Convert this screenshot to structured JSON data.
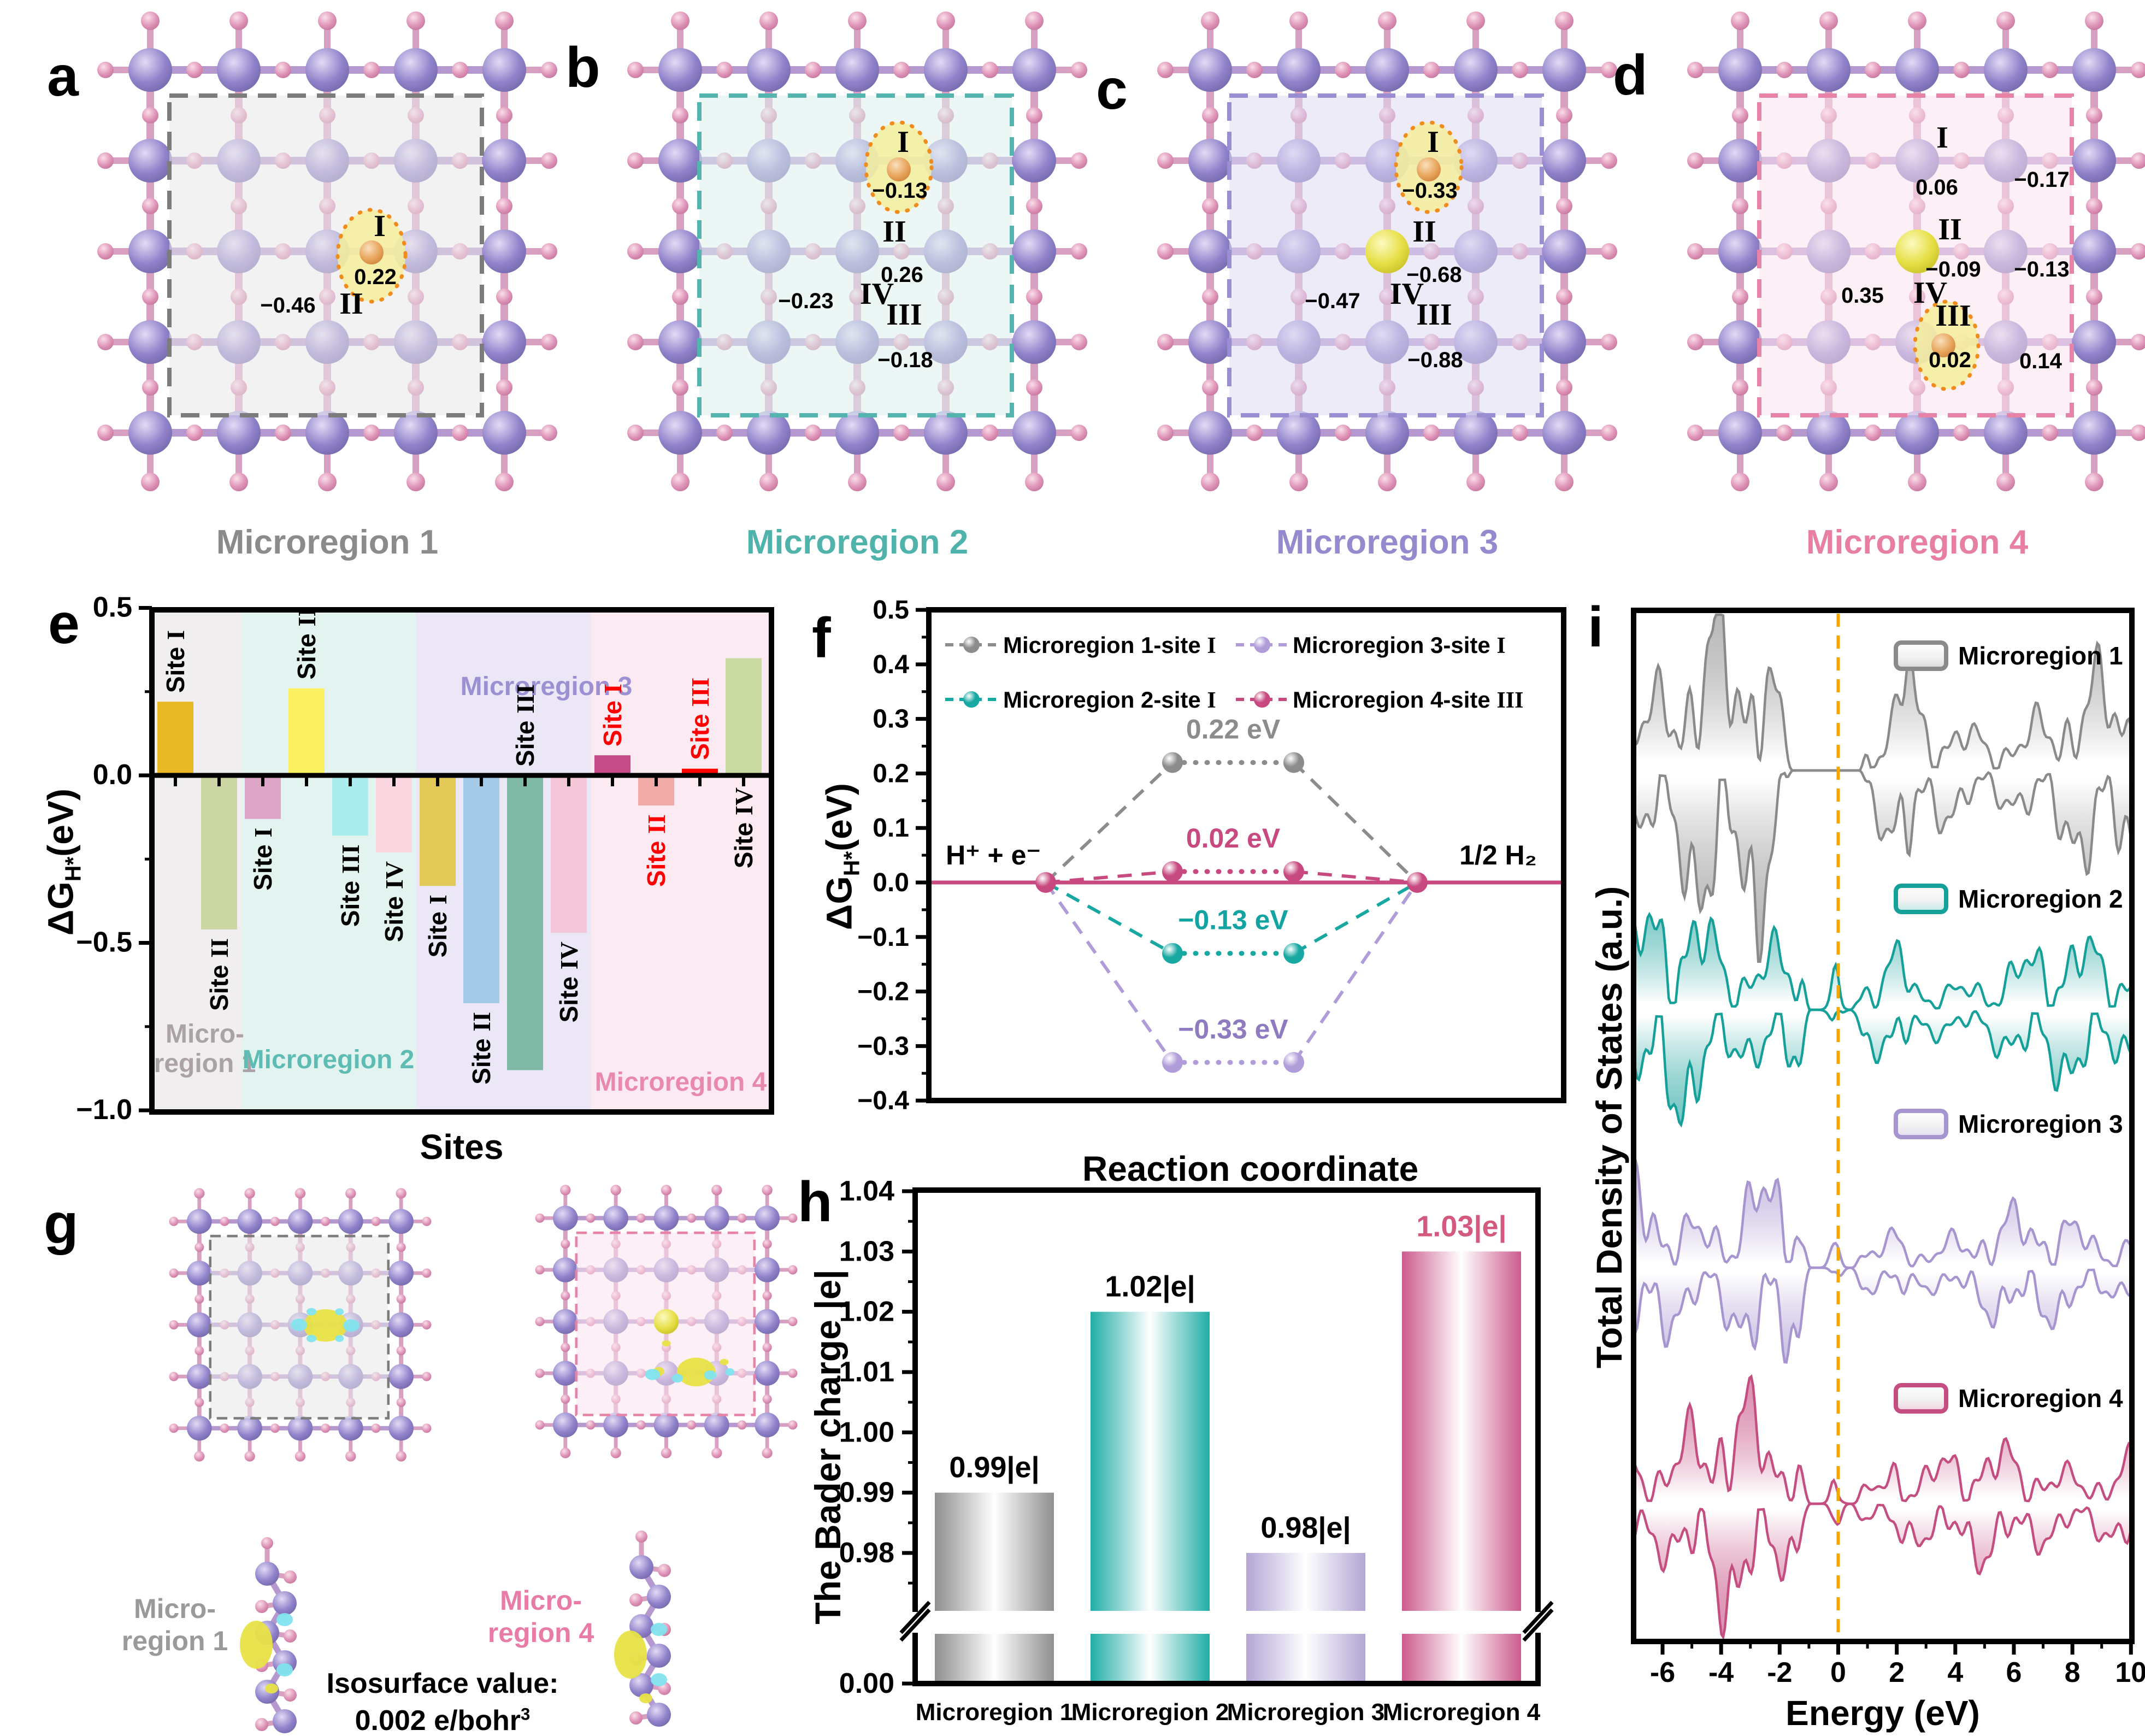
{
  "panel_letters": {
    "a": "a",
    "b": "b",
    "c": "c",
    "d": "d",
    "e": "e",
    "f": "f",
    "g": "g",
    "h": "h",
    "i": "i"
  },
  "structures": {
    "a": {
      "title": "Microregion 1",
      "title_color": "#8B8B8B",
      "box_color": "#7C7C7C",
      "box_fill": "#E9E7EA",
      "sites": {
        "I": {
          "label": "I",
          "value": "0.22",
          "highlighted": true
        },
        "II": {
          "label": "II",
          "value": "−0.46"
        }
      }
    },
    "b": {
      "title": "Microregion 2",
      "title_color": "#4FB3AB",
      "box_color": "#53B5AD",
      "box_fill": "#DCF1ED",
      "sites": {
        "I": {
          "label": "I",
          "value": "−0.13",
          "highlighted": true
        },
        "II": {
          "label": "II",
          "value": "0.26"
        },
        "IV": {
          "label": "IV",
          "value": "−0.23"
        },
        "III": {
          "label": "III",
          "value": "−0.18"
        }
      }
    },
    "c": {
      "title": "Microregion 3",
      "title_color": "#9689CE",
      "box_color": "#9A8DD2",
      "box_fill": "#DEDAF2",
      "dopant": true,
      "sites": {
        "I": {
          "label": "I",
          "value": "−0.33",
          "highlighted": true
        },
        "II": {
          "label": "II",
          "value": "−0.68"
        },
        "IV": {
          "label": "IV",
          "value": "−0.47"
        },
        "III": {
          "label": "III",
          "value": "−0.88"
        }
      }
    },
    "d": {
      "title": "Microregion 4",
      "title_color": "#E77EA3",
      "box_color": "#E783A7",
      "box_fill": "#F9E2EC",
      "dopant": true,
      "sites": {
        "I": {
          "label": "I",
          "value": "0.06",
          "extra": "−0.17"
        },
        "II": {
          "label": "II",
          "value": "−0.09",
          "extra": "−0.13"
        },
        "IV": {
          "label": "IV",
          "value": "0.35"
        },
        "III": {
          "label": "III",
          "value": "0.02",
          "extra": "0.14",
          "highlighted": true
        }
      }
    }
  },
  "atoms": {
    "lattice_main": "#8E7EC8",
    "lattice_secondary": "#DD8FB4",
    "dopant": "#E3DC3E",
    "adsorbate": "#E2A05A",
    "isosurface_positive": "#EDE34D",
    "isosurface_negative": "#7EDEE8"
  },
  "chart_data": [
    {
      "id": "e",
      "type": "bar",
      "xlabel": "Sites",
      "ylabel_parts": {
        "main": "ΔG",
        "sub": "H*",
        "unit": "(eV)"
      },
      "ylim": [
        -1.0,
        0.5
      ],
      "yticks": [
        "0.5",
        "0.0",
        "−0.5",
        "−1.0"
      ],
      "regions": [
        {
          "name": "Micro-region 1",
          "lines": [
            "Micro-",
            "region 1"
          ],
          "label_color": "#ABA2A7",
          "band": "#F1EEF0"
        },
        {
          "name": "Microregion 2",
          "lines": [
            "Microregion 2"
          ],
          "label_color": "#5FBCB4",
          "band": "#E3F4F0"
        },
        {
          "name": "Microregion 3",
          "lines": [
            "Microregion 3"
          ],
          "label_color": "#9C90D2",
          "band": "#EBE7F7"
        },
        {
          "name": "Microregion 4",
          "lines": [
            "Microregion 4"
          ],
          "label_color": "#E989AC",
          "band": "#FCEAF2"
        }
      ],
      "bars": [
        {
          "region": 1,
          "site": "I",
          "value": 0.22,
          "color": "#E9B826",
          "label_color": "#000000",
          "label_pos": "above"
        },
        {
          "region": 1,
          "site": "II",
          "value": -0.46,
          "color": "#CBD6A4",
          "label_color": "#000000",
          "label_pos": "below"
        },
        {
          "region": 2,
          "site": "I",
          "value": -0.13,
          "color": "#DEA6C6",
          "label_color": "#000000",
          "label_pos": "below"
        },
        {
          "region": 2,
          "site": "II",
          "value": 0.26,
          "color": "#FBF162",
          "label_color": "#000000",
          "label_pos": "above"
        },
        {
          "region": 2,
          "site": "III",
          "value": -0.18,
          "color": "#ABECEF",
          "label_color": "#000000",
          "label_pos": "below"
        },
        {
          "region": 2,
          "site": "IV",
          "value": -0.23,
          "color": "#FAD6E0",
          "label_color": "#000000",
          "label_pos": "below"
        },
        {
          "region": 3,
          "site": "I",
          "value": -0.33,
          "color": "#E2C857",
          "label_color": "#000000",
          "label_pos": "below"
        },
        {
          "region": 3,
          "site": "II",
          "value": -0.68,
          "color": "#A5CAE8",
          "label_color": "#000000",
          "label_pos": "below"
        },
        {
          "region": 3,
          "site": "III",
          "value": -0.88,
          "color": "#7FB9A5",
          "label_color": "#000000",
          "label_pos": "aboveAxis"
        },
        {
          "region": 3,
          "site": "IV",
          "value": -0.47,
          "color": "#F3C6D8",
          "label_color": "#000000",
          "label_pos": "below"
        },
        {
          "region": 4,
          "site": "I",
          "value": 0.06,
          "color": "#C44B85",
          "label_color": "#FF0000",
          "label_pos": "above"
        },
        {
          "region": 4,
          "site": "II",
          "value": -0.09,
          "color": "#F1ABA7",
          "label_color": "#FF0000",
          "label_pos": "below"
        },
        {
          "region": 4,
          "site": "III",
          "value": 0.02,
          "color": "#FF0000",
          "label_color": "#FF0000",
          "label_pos": "above"
        },
        {
          "region": 4,
          "site": "IV",
          "value": 0.35,
          "color": "#C9DAA2",
          "label_color": "#000000",
          "label_pos": "belowAxis"
        }
      ]
    },
    {
      "id": "f",
      "type": "line",
      "xlabel": "Reaction coordinate",
      "ylabel_parts": {
        "main": "ΔG",
        "sub": "H*",
        "unit": "(eV)"
      },
      "ylim": [
        -0.4,
        0.5
      ],
      "yticks": [
        "0.5",
        "0.4",
        "0.3",
        "0.2",
        "0.1",
        "0.0",
        "−0.1",
        "−0.2",
        "−0.3",
        "−0.4"
      ],
      "start_label": "H⁺ + e⁻",
      "end_label": "1/2 H₂",
      "series": [
        {
          "name": "Microregion 1-site",
          "site": "I",
          "color": "#8C8C8C",
          "value": 0.22,
          "annotation": "0.22 eV",
          "ann_color": "#8C8C8C"
        },
        {
          "name": "Microregion 2-site",
          "site": "I",
          "color": "#17A8A1",
          "value": -0.13,
          "annotation": "−0.13 eV",
          "ann_color": "#12A3A3"
        },
        {
          "name": "Microregion 3-site",
          "site": "I",
          "color": "#AF9CD8",
          "value": -0.33,
          "annotation": "−0.33 eV",
          "ann_color": "#8F7CC0"
        },
        {
          "name": "Microregion 4-site",
          "site": "III",
          "color": "#C8497F",
          "value": 0.02,
          "annotation": "0.02 eV",
          "ann_color": "#C8497F"
        }
      ]
    },
    {
      "id": "h",
      "type": "bar",
      "ylabel": "The Bader charge |e|",
      "axis_break": true,
      "yticks": [
        "1.04",
        "1.03",
        "1.02",
        "1.01",
        "1.00",
        "0.99",
        "0.98",
        "0.00"
      ],
      "categories": [
        "Microregion 1",
        "Microregion 2",
        "Microregion 3",
        "Microregion 4"
      ],
      "values": [
        0.99,
        1.02,
        0.98,
        1.03
      ],
      "labels": [
        "0.99|e|",
        "1.02|e|",
        "0.98|e|",
        "1.03|e|"
      ],
      "colors": [
        "#8F8F8F",
        "#1FADA6",
        "#B3A6D5",
        "#CC5B8D"
      ],
      "label_colors": [
        "#000000",
        "#000000",
        "#000000",
        "#D4597F"
      ]
    },
    {
      "id": "i",
      "type": "area",
      "xlabel": "Energy (eV)",
      "ylabel": "Total Density of States (a.u.)",
      "xlim": [
        -7,
        10
      ],
      "xticks": [
        -6,
        -4,
        -2,
        0,
        2,
        4,
        6,
        8,
        10
      ],
      "fermi_line": {
        "x": 0,
        "color": "#F2A800"
      },
      "series": [
        {
          "name": "Microregion 1",
          "color": "#8A8A8A",
          "light": "#D9D9D9"
        },
        {
          "name": "Microregion 2",
          "color": "#16A09A",
          "light": "#BFE8E5"
        },
        {
          "name": "Microregion 3",
          "color": "#A795D0",
          "light": "#E3DCF2"
        },
        {
          "name": "Microregion 4",
          "color": "#C54E81",
          "light": "#F2CEDE"
        }
      ]
    }
  ],
  "isosurface": {
    "region1_line1": "Micro-",
    "region1_line2": "region 1",
    "region1_color": "#9A9A9A",
    "region4_line1": "Micro-",
    "region4_line2": "region 4",
    "region4_color": "#E87CA6",
    "caption_line1": "Isosurface value:",
    "caption_line2": "0.002 e/bohr",
    "caption_sup": "3"
  }
}
